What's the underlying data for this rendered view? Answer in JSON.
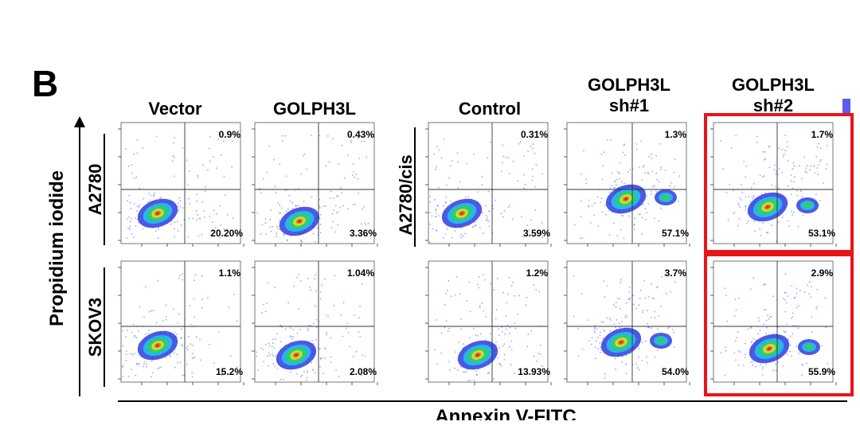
{
  "panel_label": "B",
  "y_axis_label": "Propidium iodide",
  "x_axis_label": "Annexin V-FITC",
  "columns": [
    "Vector",
    "GOLPH3L",
    "Control",
    "GOLPH3L sh#1",
    "GOLPH3L sh#2"
  ],
  "column_titles": {
    "vector": "Vector",
    "golph3l": "GOLPH3L",
    "control": "Control",
    "sh1_line1": "GOLPH3L",
    "sh1_line2": "sh#1",
    "sh2_line1": "GOLPH3L",
    "sh2_line2": "sh#2"
  },
  "row_labels": {
    "left_top": "A2780",
    "left_bottom": "SKOV3",
    "right_top": "A2780/cis"
  },
  "panels": [
    {
      "row": "A2780",
      "column": "Vector",
      "upper_right": "0.9%",
      "lower_right": "20.20%"
    },
    {
      "row": "A2780",
      "column": "GOLPH3L",
      "upper_right": "0.43%",
      "lower_right": "3.36%"
    },
    {
      "row": "A2780/cis",
      "column": "Control",
      "upper_right": "0.31%",
      "lower_right": "3.59%"
    },
    {
      "row": "A2780/cis",
      "column": "GOLPH3L sh#1",
      "upper_right": "1.3%",
      "lower_right": "57.1%"
    },
    {
      "row": "A2780/cis",
      "column": "GOLPH3L sh#2",
      "upper_right": "1.7%",
      "lower_right": "53.1%"
    },
    {
      "row": "SKOV3",
      "column": "Vector",
      "upper_right": "1.1%",
      "lower_right": "15.2%"
    },
    {
      "row": "SKOV3",
      "column": "GOLPH3L",
      "upper_right": "1.04%",
      "lower_right": "2.08%"
    },
    {
      "row": "SKOV3",
      "column": "Control",
      "upper_right": "1.2%",
      "lower_right": "13.93%"
    },
    {
      "row": "SKOV3",
      "column": "GOLPH3L sh#1",
      "upper_right": "3.7%",
      "lower_right": "54.0%"
    },
    {
      "row": "SKOV3",
      "column": "GOLPH3L sh#2",
      "upper_right": "2.9%",
      "lower_right": "55.9%"
    }
  ],
  "highlight_color": "#e8141a"
}
